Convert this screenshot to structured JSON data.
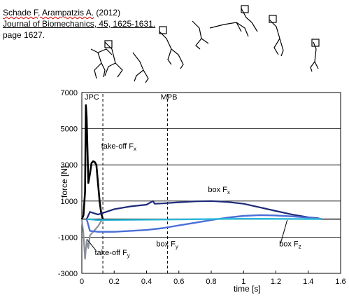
{
  "citation": {
    "line1_authors": "Schade F, Arampatzis A.",
    "line1_year": " (2012)",
    "line2_journal": "Journal of Biomechanics",
    "line2_rest": ", 45, 1625-1631.",
    "line3": "page 1627."
  },
  "chart_data": {
    "type": "line",
    "title": "",
    "xlabel": "time [s]",
    "ylabel": "force [N]",
    "xlim": [
      0,
      1.6
    ],
    "ylim": [
      -3000,
      7000
    ],
    "xticks": [
      "0",
      "0.2",
      "0.4",
      "0.6",
      "0.8",
      "1",
      "1.2",
      "1.4",
      "1.6"
    ],
    "yticks": [
      "7000",
      "5000",
      "3000",
      "1000",
      "-1000",
      "-3000"
    ],
    "grid": "horizontal at 1000, 3000, 5000, -1000",
    "series": [
      {
        "name": "take-off Fx",
        "color": "#000000",
        "points": [
          [
            0,
            0
          ],
          [
            0.01,
            200
          ],
          [
            0.02,
            1500
          ],
          [
            0.025,
            6300
          ],
          [
            0.03,
            5600
          ],
          [
            0.04,
            2000
          ],
          [
            0.05,
            2500
          ],
          [
            0.06,
            3100
          ],
          [
            0.07,
            3200
          ],
          [
            0.08,
            3150
          ],
          [
            0.09,
            3000
          ],
          [
            0.1,
            2000
          ],
          [
            0.11,
            1000
          ],
          [
            0.12,
            300
          ],
          [
            0.13,
            0
          ]
        ]
      },
      {
        "name": "box Fx",
        "color": "#1c2a78",
        "points": [
          [
            0.03,
            0
          ],
          [
            0.05,
            400
          ],
          [
            0.1,
            250
          ],
          [
            0.15,
            400
          ],
          [
            0.2,
            550
          ],
          [
            0.3,
            700
          ],
          [
            0.4,
            800
          ],
          [
            0.44,
            1000
          ],
          [
            0.45,
            850
          ],
          [
            0.5,
            870
          ],
          [
            0.6,
            930
          ],
          [
            0.7,
            980
          ],
          [
            0.8,
            1000
          ],
          [
            0.9,
            950
          ],
          [
            1.0,
            850
          ],
          [
            1.1,
            650
          ],
          [
            1.2,
            450
          ],
          [
            1.3,
            250
          ],
          [
            1.4,
            100
          ],
          [
            1.46,
            50
          ],
          [
            1.48,
            0
          ]
        ]
      },
      {
        "name": "take-off Fy",
        "color": "#8a8f9a",
        "points": [
          [
            0,
            0
          ],
          [
            0.01,
            -800
          ],
          [
            0.02,
            -2200
          ],
          [
            0.03,
            -1200
          ],
          [
            0.04,
            -1600
          ],
          [
            0.05,
            -900
          ],
          [
            0.07,
            -700
          ],
          [
            0.1,
            -400
          ],
          [
            0.12,
            -100
          ],
          [
            0.13,
            0
          ]
        ]
      },
      {
        "name": "box Fy",
        "color": "#4a6fd8",
        "points": [
          [
            0.03,
            0
          ],
          [
            0.05,
            -650
          ],
          [
            0.1,
            -700
          ],
          [
            0.2,
            -700
          ],
          [
            0.3,
            -650
          ],
          [
            0.4,
            -600
          ],
          [
            0.5,
            -500
          ],
          [
            0.6,
            -350
          ],
          [
            0.7,
            -200
          ],
          [
            0.8,
            -50
          ],
          [
            0.9,
            80
          ],
          [
            1.0,
            180
          ],
          [
            1.1,
            220
          ],
          [
            1.2,
            200
          ],
          [
            1.3,
            150
          ],
          [
            1.4,
            80
          ],
          [
            1.48,
            0
          ]
        ]
      },
      {
        "name": "box Fz",
        "color": "#2ab8d8",
        "points": [
          [
            0.03,
            0
          ],
          [
            0.1,
            -50
          ],
          [
            0.3,
            -40
          ],
          [
            0.6,
            -20
          ],
          [
            0.8,
            0
          ],
          [
            1.0,
            20
          ],
          [
            1.2,
            10
          ],
          [
            1.48,
            0
          ]
        ]
      }
    ],
    "markers": [
      {
        "label": "JPC",
        "x": 0.13
      },
      {
        "label": "MPB",
        "x": 0.53
      }
    ],
    "annotations": [
      {
        "label_main": "take-off F",
        "label_sub": "x"
      },
      {
        "label_main": "box F",
        "label_sub": "x"
      },
      {
        "label_main": "take-off F",
        "label_sub": "y"
      },
      {
        "label_main": "box F",
        "label_sub": "y"
      },
      {
        "label_main": "box F",
        "label_sub": "z"
      }
    ]
  }
}
